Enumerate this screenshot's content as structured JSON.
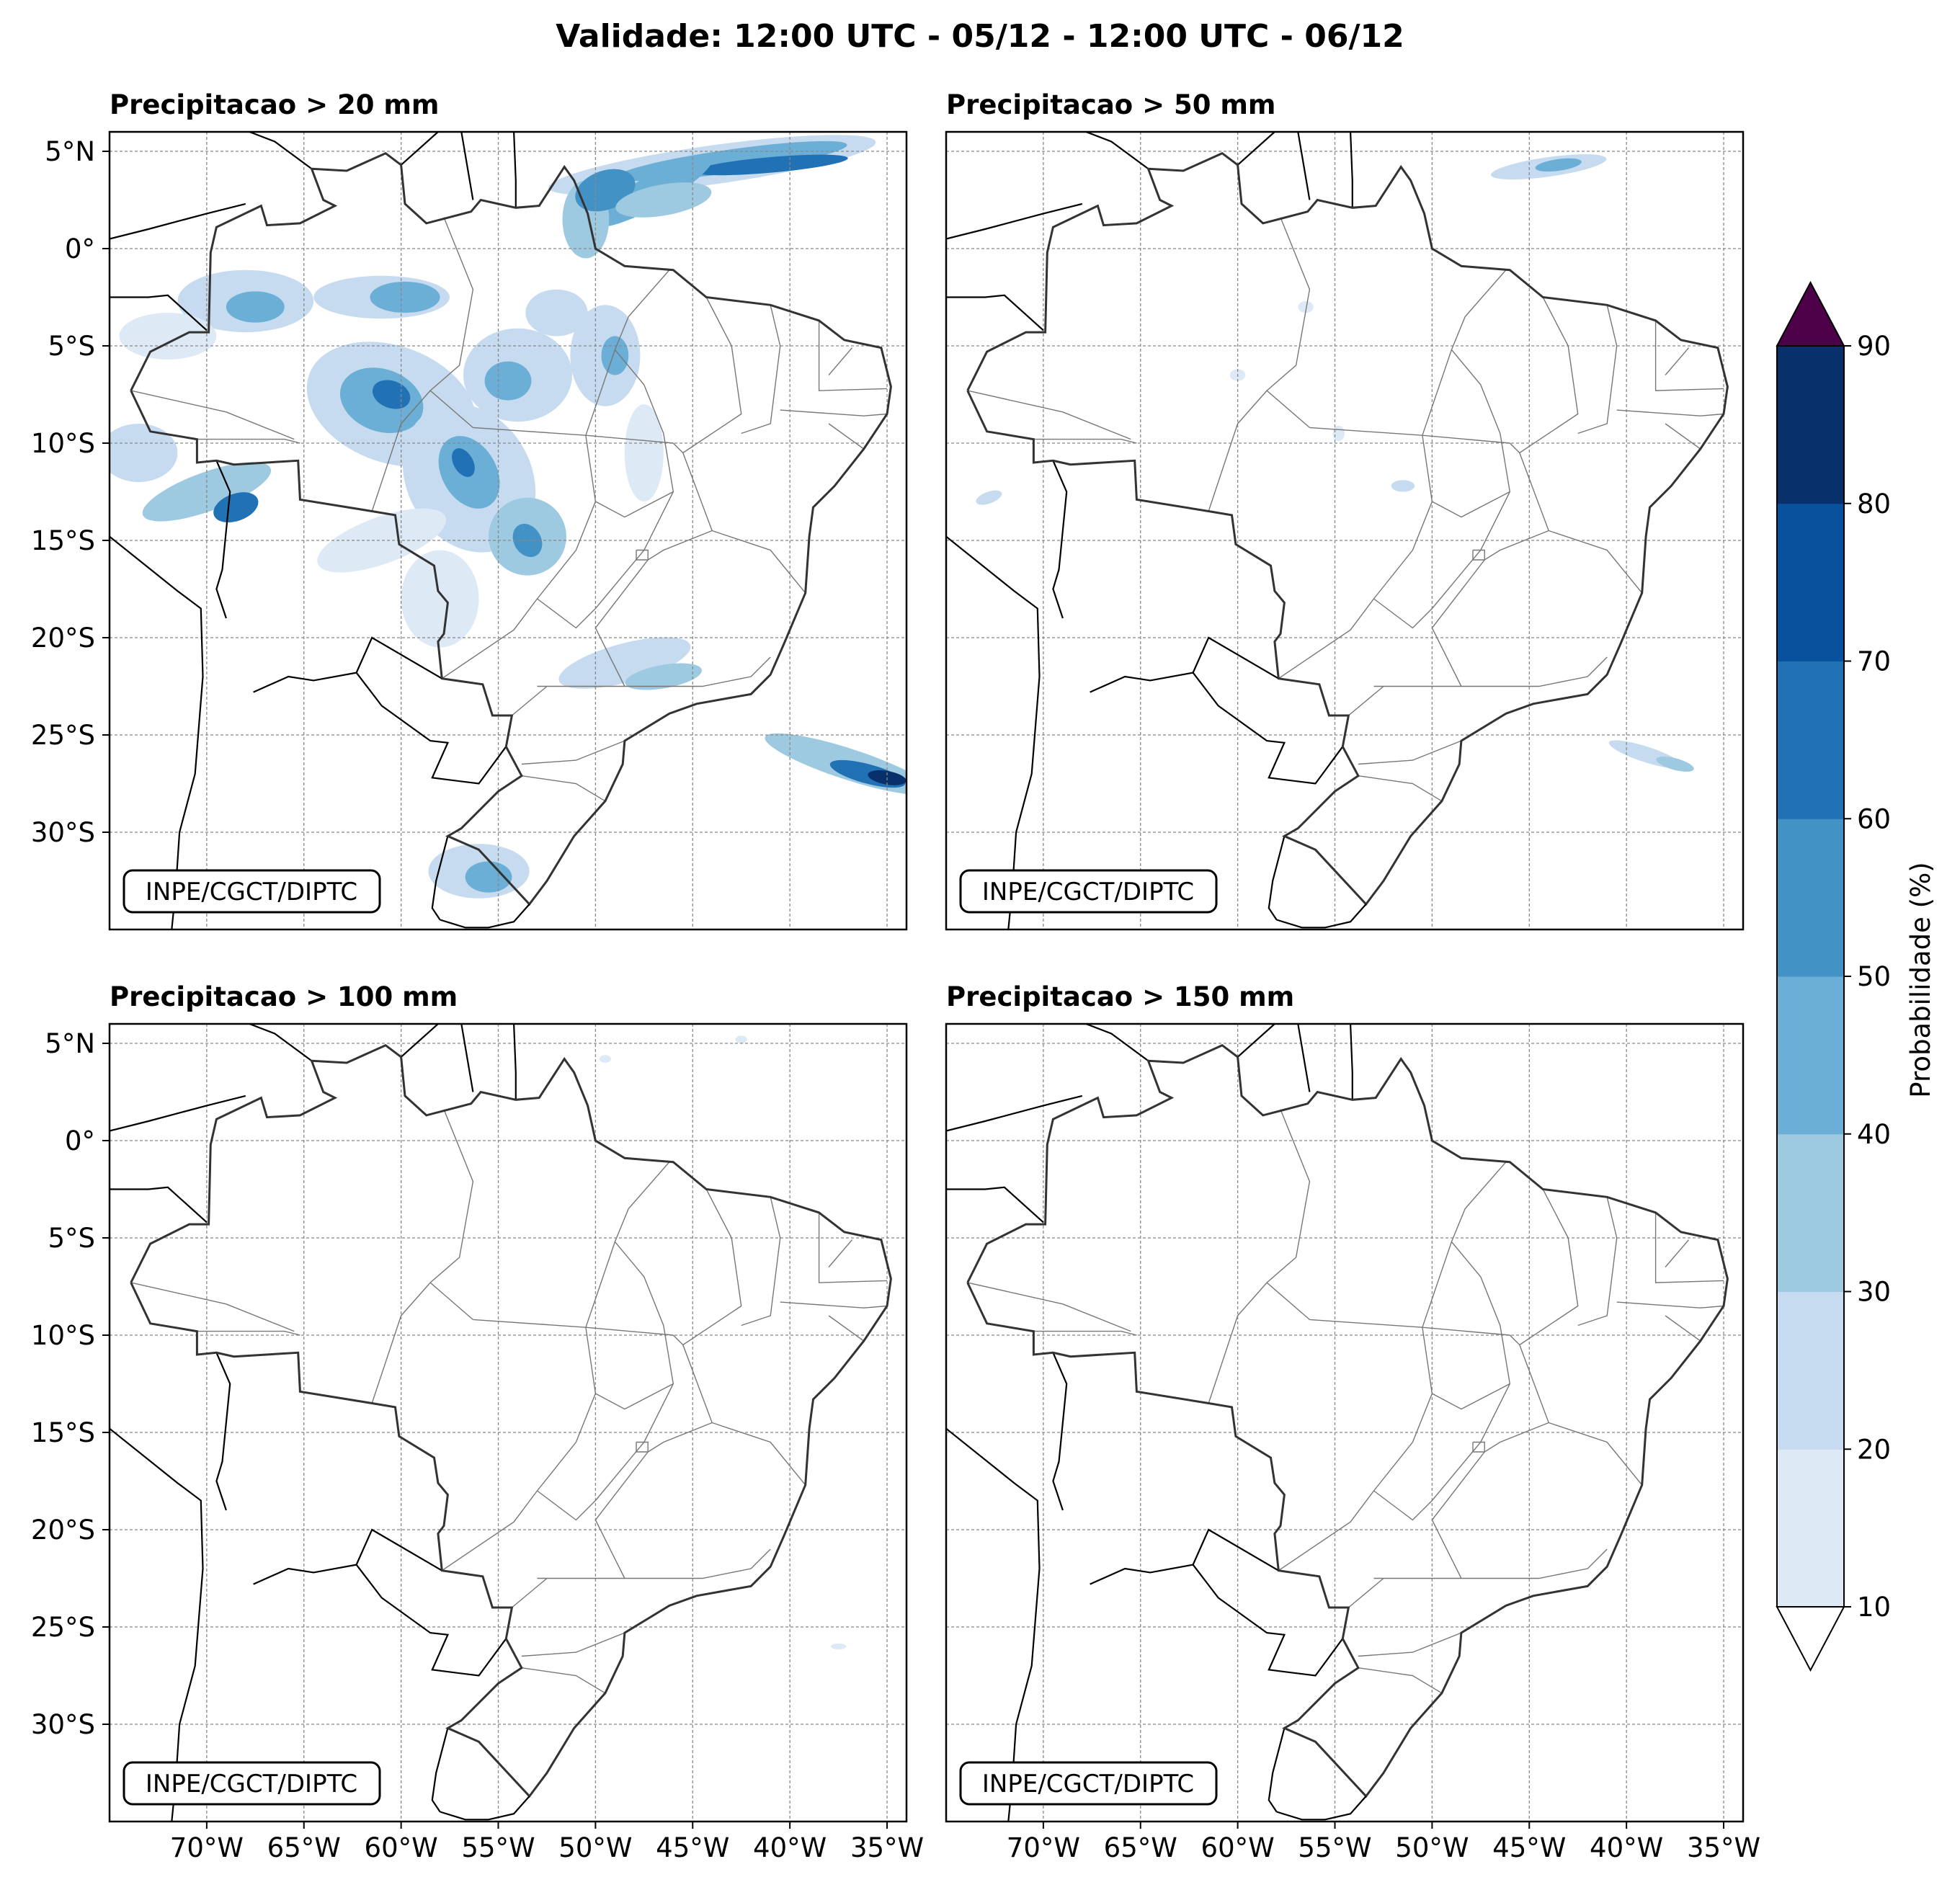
{
  "figure_title": "Validade: 12:00 UTC - 05/12 - 12:00 UTC - 06/12",
  "panels": [
    {
      "title": "Precipitacao > 20 mm",
      "credit": "INPE/CGCT/DIPTC"
    },
    {
      "title": "Precipitacao > 50 mm",
      "credit": "INPE/CGCT/DIPTC"
    },
    {
      "title": "Precipitacao > 100 mm",
      "credit": "INPE/CGCT/DIPTC"
    },
    {
      "title": "Precipitacao > 150 mm",
      "credit": "INPE/CGCT/DIPTC"
    }
  ],
  "lat_ticks": [
    "5°N",
    "0°",
    "5°S",
    "10°S",
    "15°S",
    "20°S",
    "25°S",
    "30°S"
  ],
  "lon_ticks": [
    "70°W",
    "65°W",
    "60°W",
    "55°W",
    "50°W",
    "45°W",
    "40°W",
    "35°W"
  ],
  "colorbar": {
    "label": "Probabilidade (%)",
    "ticks": [
      "10",
      "20",
      "30",
      "40",
      "50",
      "60",
      "70",
      "80",
      "90"
    ],
    "colors": [
      "#dde9f5",
      "#c6dbef",
      "#9ecae1",
      "#6baed6",
      "#4292c6",
      "#2171b5",
      "#08519c",
      "#08306b"
    ],
    "over_color": "#4d0148",
    "under_color": "#ffffff"
  },
  "map_extent": {
    "lon_min": -75,
    "lon_max": -34,
    "lat_min": -35,
    "lat_max": 6
  }
}
